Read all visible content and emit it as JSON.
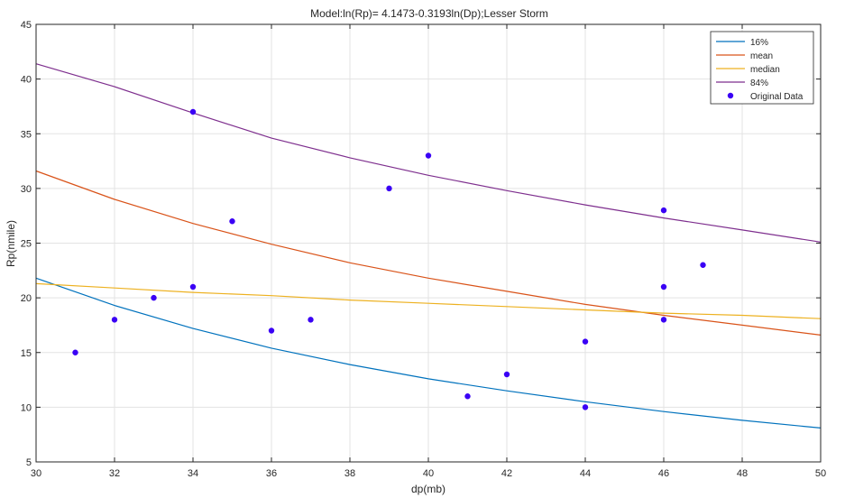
{
  "chart_data": {
    "type": "line",
    "title": "Model:ln(Rp)= 4.1473-0.3193ln(Dp);Lesser Storm",
    "xlabel": "dp(mb)",
    "ylabel": "Rp(nmile)",
    "xlim": [
      30,
      50
    ],
    "ylim": [
      5,
      45
    ],
    "xticks": [
      30,
      32,
      34,
      36,
      38,
      40,
      42,
      44,
      46,
      48,
      50
    ],
    "yticks": [
      5,
      10,
      15,
      20,
      25,
      30,
      35,
      40,
      45
    ],
    "grid": true,
    "legend_position": "top-right",
    "series": [
      {
        "name": "16%",
        "color": "#0072BD",
        "x": [
          30,
          32,
          34,
          36,
          38,
          40,
          42,
          44,
          46,
          48,
          50
        ],
        "y": [
          21.8,
          19.3,
          17.2,
          15.4,
          13.9,
          12.6,
          11.5,
          10.5,
          9.6,
          8.8,
          8.1
        ]
      },
      {
        "name": "mean",
        "color": "#D95319",
        "x": [
          30,
          32,
          34,
          36,
          38,
          40,
          42,
          44,
          46,
          48,
          50
        ],
        "y": [
          31.6,
          29.0,
          26.8,
          24.9,
          23.2,
          21.8,
          20.6,
          19.4,
          18.4,
          17.5,
          16.6
        ]
      },
      {
        "name": "median",
        "color": "#EDB120",
        "x": [
          30,
          32,
          34,
          36,
          38,
          40,
          42,
          44,
          46,
          48,
          50
        ],
        "y": [
          21.3,
          20.9,
          20.5,
          20.2,
          19.8,
          19.5,
          19.2,
          18.9,
          18.6,
          18.4,
          18.1
        ]
      },
      {
        "name": "84%",
        "color": "#7E2F8E",
        "x": [
          30,
          32,
          34,
          36,
          38,
          40,
          42,
          44,
          46,
          48,
          50
        ],
        "y": [
          41.4,
          39.3,
          36.9,
          34.6,
          32.8,
          31.2,
          29.8,
          28.5,
          27.3,
          26.2,
          25.1
        ]
      }
    ],
    "scatter": {
      "name": "Original Data",
      "color": "#3A00F5",
      "points": [
        [
          31,
          15
        ],
        [
          32,
          18
        ],
        [
          33,
          20
        ],
        [
          34,
          37
        ],
        [
          34,
          21
        ],
        [
          35,
          27
        ],
        [
          36,
          17
        ],
        [
          37,
          18
        ],
        [
          39,
          30
        ],
        [
          40,
          33
        ],
        [
          41,
          11
        ],
        [
          42,
          13
        ],
        [
          44,
          16
        ],
        [
          44,
          10
        ],
        [
          46,
          28
        ],
        [
          46,
          21
        ],
        [
          46,
          18
        ],
        [
          47,
          23
        ]
      ]
    }
  }
}
